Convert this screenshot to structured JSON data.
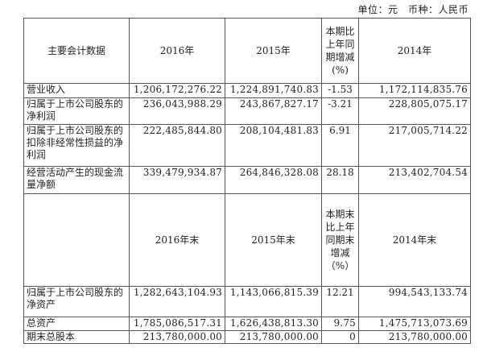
{
  "unit_note": "单位：元　币种：人民币",
  "table1": {
    "headers": [
      "主要会计数据",
      "2016年",
      "2015年",
      "本期比上年同期增减(%)",
      "2014年"
    ],
    "rows": [
      [
        "营业收入",
        "1,206,172,276.22",
        "1,224,891,740.83",
        "-1.53",
        "1,172,114,835.76"
      ],
      [
        "归属于上市公司股东的净利润",
        "236,043,988.29",
        "243,867,827.17",
        "-3.21",
        "228,805,075.17"
      ],
      [
        "归属于上市公司股东的扣除非经常性损益的净利润",
        "222,485,844.80",
        "208,104,481.83",
        "6.91",
        "217,005,714.22"
      ],
      [
        "经营活动产生的现金流量净额",
        "339,479,934.87",
        "264,846,328.08",
        "28.18",
        "213,402,704.54"
      ]
    ]
  },
  "table2": {
    "headers": [
      "",
      "2016年末",
      "2015年末",
      "本期末比上年同期末增减（%）",
      "2014年末"
    ],
    "rows": [
      [
        "归属于上市公司股东的净资产",
        "1,282,643,104.93",
        "1,143,066,815.39",
        "12.21",
        "994,543,133.74"
      ],
      [
        "总资产",
        "1,785,086,517.31",
        "1,626,438,813.30",
        "9.75",
        "1,475,713,073.69"
      ],
      [
        "期末总股本",
        "213,780,000.00",
        "213,780,000.00",
        "0",
        "213,780,000.00"
      ]
    ]
  }
}
